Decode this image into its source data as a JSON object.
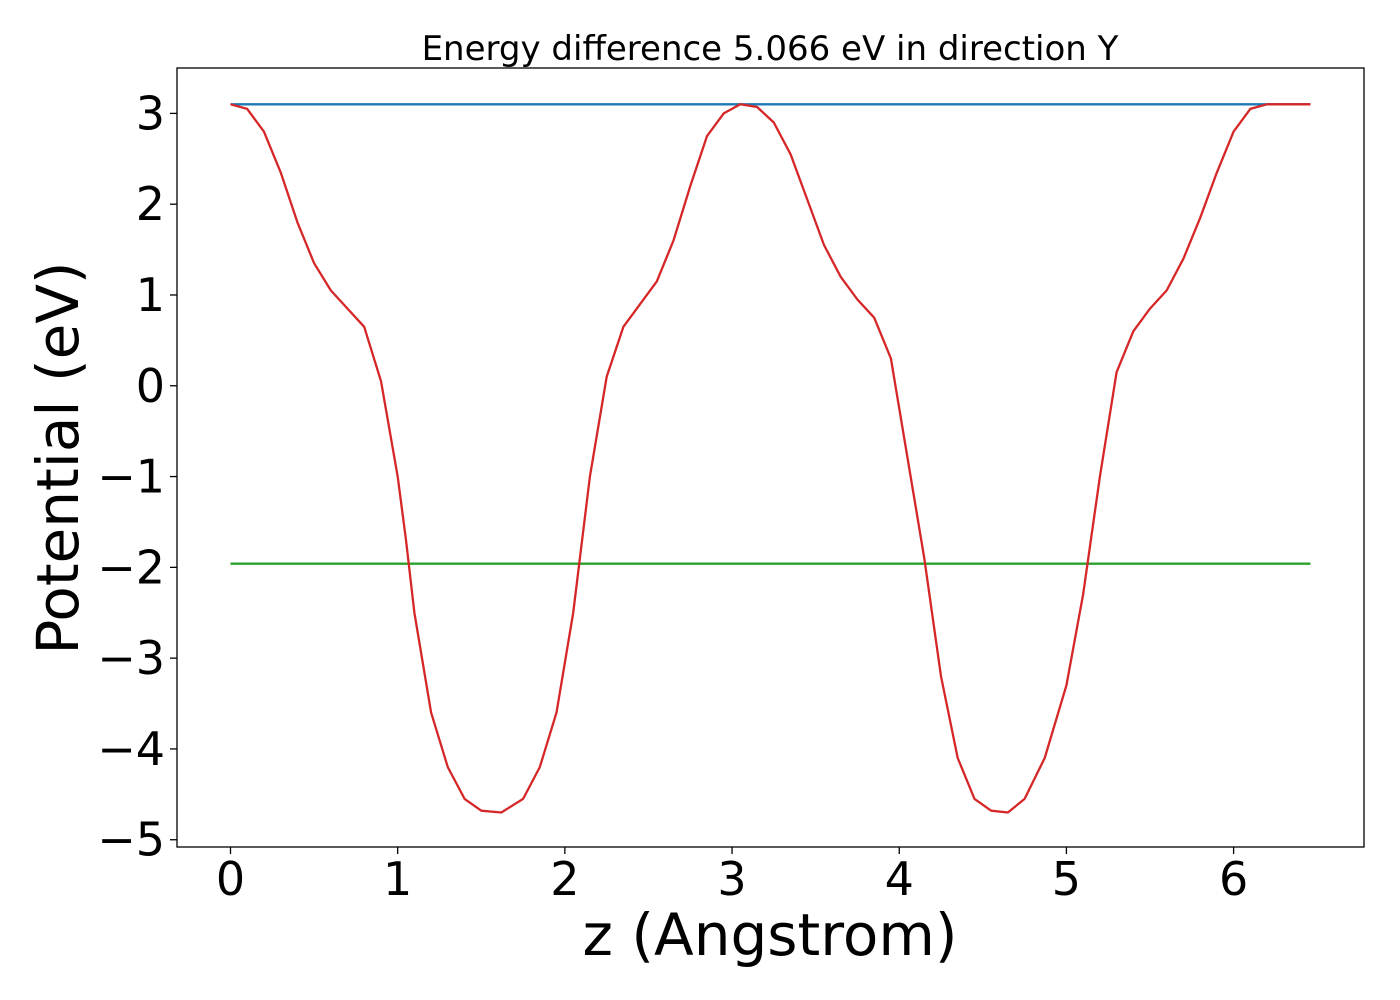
{
  "chart_data": {
    "type": "line",
    "title": "Energy difference 5.066 eV in direction Y",
    "xlabel": "z (Angstrom)",
    "ylabel": "Potential (eV)",
    "xlim": [
      -0.32,
      6.78
    ],
    "ylim": [
      -5.08,
      3.5
    ],
    "x_ticks": [
      0,
      1,
      2,
      3,
      4,
      5,
      6
    ],
    "y_ticks": [
      -5,
      -4,
      -3,
      -2,
      -1,
      0,
      1,
      2,
      3
    ],
    "x_tick_labels": [
      "0",
      "1",
      "2",
      "3",
      "4",
      "5",
      "6"
    ],
    "y_tick_labels": [
      "−5",
      "−4",
      "−3",
      "−2",
      "−1",
      "0",
      "1",
      "2",
      "3"
    ],
    "grid": false,
    "series": [
      {
        "color": "#1f77b4",
        "x": [
          0.0,
          6.46
        ],
        "y": [
          3.1,
          3.1
        ]
      },
      {
        "color": "#2ca02c",
        "x": [
          0.0,
          6.46
        ],
        "y": [
          -1.96,
          -1.96
        ]
      },
      {
        "color": "#d62728",
        "x": [
          0.0,
          0.1,
          0.2,
          0.3,
          0.4,
          0.5,
          0.6,
          0.7,
          0.8,
          0.9,
          1.0,
          1.05,
          1.1,
          1.2,
          1.3,
          1.4,
          1.5,
          1.62,
          1.75,
          1.85,
          1.95,
          2.05,
          2.15,
          2.25,
          2.35,
          2.45,
          2.55,
          2.65,
          2.75,
          2.85,
          2.95,
          3.05,
          3.15,
          3.25,
          3.35,
          3.45,
          3.55,
          3.65,
          3.75,
          3.85,
          3.95,
          4.05,
          4.15,
          4.25,
          4.35,
          4.45,
          4.55,
          4.65,
          4.75,
          4.87,
          5.0,
          5.1,
          5.2,
          5.3,
          5.4,
          5.5,
          5.6,
          5.7,
          5.8,
          5.9,
          6.0,
          6.1,
          6.2,
          6.3,
          6.4,
          6.46
        ],
        "y": [
          3.1,
          3.05,
          2.8,
          2.35,
          1.8,
          1.35,
          1.05,
          0.85,
          0.65,
          0.05,
          -1.0,
          -1.7,
          -2.5,
          -3.6,
          -4.2,
          -4.55,
          -4.68,
          -4.7,
          -4.55,
          -4.2,
          -3.6,
          -2.5,
          -1.0,
          0.1,
          0.65,
          0.9,
          1.15,
          1.6,
          2.2,
          2.75,
          3.0,
          3.1,
          3.07,
          2.9,
          2.55,
          2.05,
          1.55,
          1.2,
          0.95,
          0.75,
          0.3,
          -0.8,
          -1.9,
          -3.2,
          -4.1,
          -4.55,
          -4.68,
          -4.7,
          -4.55,
          -4.1,
          -3.3,
          -2.3,
          -1.0,
          0.15,
          0.6,
          0.85,
          1.05,
          1.4,
          1.85,
          2.35,
          2.8,
          3.05,
          3.1,
          3.1,
          3.1,
          3.1
        ]
      }
    ]
  }
}
